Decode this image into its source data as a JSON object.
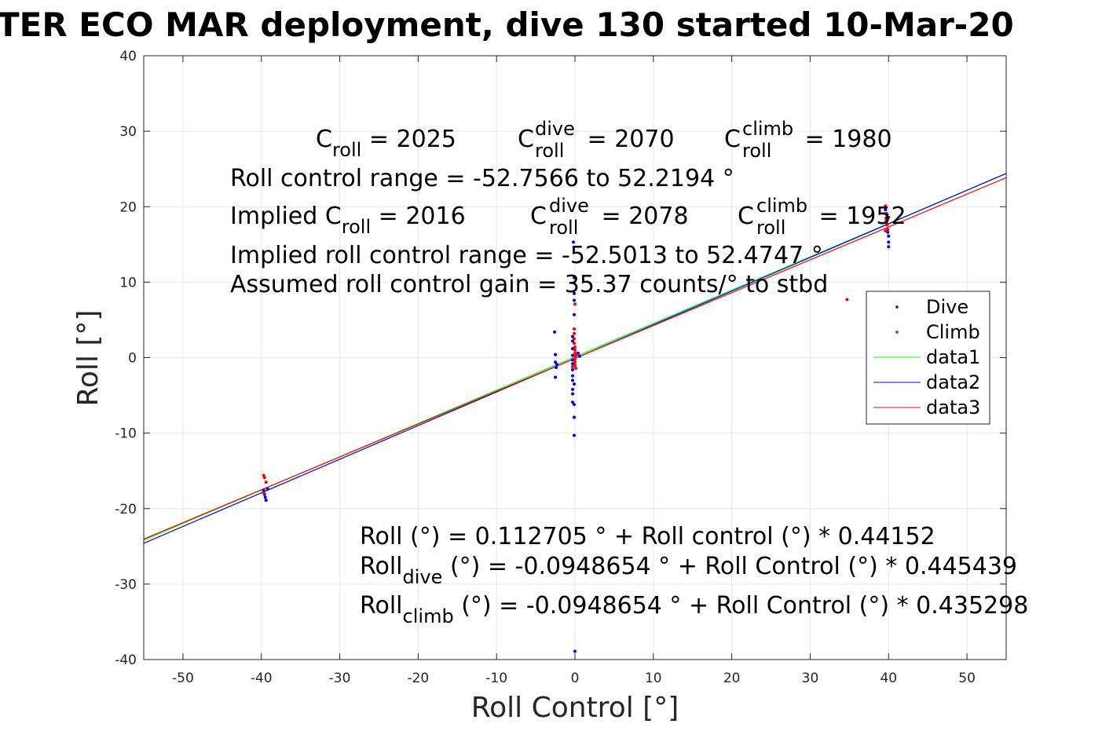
{
  "chart_data": {
    "type": "scatter",
    "title": "TER ECO MAR deployment, dive 130 started 10-Mar-20",
    "xlabel": "Roll Control [°]",
    "ylabel": "Roll [°]",
    "xlim": [
      -55,
      55
    ],
    "ylim": [
      -40,
      40
    ],
    "xticks": [
      -50,
      -40,
      -30,
      -20,
      -10,
      0,
      10,
      20,
      30,
      40,
      50
    ],
    "yticks": [
      -40,
      -30,
      -20,
      -10,
      0,
      10,
      20,
      30,
      40
    ],
    "xtick_labels": [
      "-50",
      "-40",
      "-30",
      "-20",
      "-10",
      "0",
      "10",
      "20",
      "30",
      "40",
      "50"
    ],
    "ytick_labels": [
      "-40",
      "-30",
      "-20",
      "-10",
      "0",
      "10",
      "20",
      "30",
      "40"
    ],
    "grid": true,
    "legend_position": "right",
    "series": [
      {
        "name": "Dive",
        "kind": "points",
        "color": "#0000ff",
        "points": [
          [
            -39.7,
            -17.6
          ],
          [
            -39.6,
            -18.1
          ],
          [
            -39.5,
            -18.5
          ],
          [
            -39.4,
            -18.9
          ],
          [
            -39.2,
            -17.4
          ],
          [
            -2.6,
            3.4
          ],
          [
            -2.5,
            0.4
          ],
          [
            -2.5,
            -0.6
          ],
          [
            -2.4,
            -1.3
          ],
          [
            -2.5,
            -2.6
          ],
          [
            -2.3,
            -0.9
          ],
          [
            -0.3,
            2.8
          ],
          [
            -0.3,
            2.2
          ],
          [
            -0.3,
            1.2
          ],
          [
            -0.3,
            0.3
          ],
          [
            -0.3,
            -0.3
          ],
          [
            -0.3,
            -0.8
          ],
          [
            -0.3,
            -1.6
          ],
          [
            -0.3,
            -2.4
          ],
          [
            -0.3,
            -3.0
          ],
          [
            -0.3,
            -4.2
          ],
          [
            -0.3,
            -4.8
          ],
          [
            -0.3,
            -5.9
          ],
          [
            -0.2,
            15.3
          ],
          [
            -0.1,
            10.6
          ],
          [
            -0.1,
            9.9
          ],
          [
            -0.1,
            8.5
          ],
          [
            -0.1,
            7.6
          ],
          [
            -0.1,
            5.7
          ],
          [
            -0.1,
            -3.5
          ],
          [
            -0.1,
            -6.2
          ],
          [
            -0.1,
            -7.9
          ],
          [
            -0.1,
            -10.3
          ],
          [
            0.0,
            -38.9
          ],
          [
            0.4,
            0.6
          ],
          [
            0.6,
            0.2
          ],
          [
            39.6,
            19.6
          ],
          [
            39.7,
            18.5
          ],
          [
            39.8,
            17.7
          ],
          [
            39.9,
            16.6
          ],
          [
            40.0,
            16.1
          ],
          [
            40.0,
            15.3
          ],
          [
            40.0,
            14.7
          ],
          [
            39.8,
            19.0
          ]
        ]
      },
      {
        "name": "Climb",
        "kind": "points",
        "color": "#ff0000",
        "points": [
          [
            -39.7,
            -15.6
          ],
          [
            -39.6,
            -15.9
          ],
          [
            -39.4,
            -16.5
          ],
          [
            -39.7,
            -17.9
          ],
          [
            -0.1,
            3.8
          ],
          [
            -0.1,
            3.2
          ],
          [
            -0.1,
            2.5
          ],
          [
            -0.1,
            1.9
          ],
          [
            0.0,
            1.4
          ],
          [
            0.0,
            1.0
          ],
          [
            0.0,
            0.6
          ],
          [
            0.0,
            0.2
          ],
          [
            0.0,
            -0.2
          ],
          [
            0.0,
            -0.6
          ],
          [
            0.0,
            -1.0
          ],
          [
            0.1,
            -1.4
          ],
          [
            0.0,
            7.1
          ],
          [
            -0.3,
            -1.2
          ],
          [
            0.2,
            0.4
          ],
          [
            34.7,
            7.7
          ],
          [
            39.6,
            20.1
          ],
          [
            39.7,
            19.1
          ],
          [
            39.7,
            18.3
          ],
          [
            39.8,
            17.6
          ],
          [
            39.9,
            17.0
          ],
          [
            40.0,
            18.6
          ],
          [
            39.6,
            16.8
          ]
        ]
      },
      {
        "name": "data1",
        "kind": "line",
        "color": "#00ff00",
        "intercept": 0.112705,
        "slope": 0.44152
      },
      {
        "name": "data2",
        "kind": "line",
        "color": "#0000ff",
        "intercept": -0.0948654,
        "slope": 0.445439
      },
      {
        "name": "data3",
        "kind": "line",
        "color": "#ff0000",
        "intercept": -0.0948654,
        "slope": 0.435298
      }
    ]
  },
  "annotations": {
    "c_roll_label": "C",
    "c_roll_sub": "roll",
    "c_roll_value": " = 2025",
    "c_dive_label": "C",
    "c_dive_sup": "dive",
    "c_dive_sub": "roll",
    "c_dive_value": " = 2070",
    "c_climb_label": "C",
    "c_climb_sup": "climb",
    "c_climb_sub": "roll",
    "c_climb_value": " = 1980",
    "roll_control_range": "Roll control range = -52.7566 to 52.2194 °",
    "implied_prefix": "Implied C",
    "implied_sub": "roll",
    "implied_value": " = 2016",
    "implied_dive_label": "C",
    "implied_dive_sup": "dive",
    "implied_dive_sub": "roll",
    "implied_dive_value": " = 2078",
    "implied_climb_label": "C",
    "implied_climb_sup": "climb",
    "implied_climb_sub": "roll",
    "implied_climb_value": " = 1952",
    "implied_range": "Implied roll control range = -52.5013 to 52.4747 °",
    "assumed_gain": "Assumed roll control gain = 35.37 counts/° to stbd",
    "fit_all": "Roll (°) = 0.112705 ° + Roll control (°) * 0.44152",
    "fit_dive_prefix": "Roll",
    "fit_dive_sub": "dive",
    "fit_dive_rest": " (°) = -0.0948654 ° + Roll Control (°) * 0.445439",
    "fit_climb_prefix": "Roll",
    "fit_climb_sub": "climb",
    "fit_climb_rest": " (°) = -0.0948654 ° + Roll Control (°) * 0.435298"
  }
}
